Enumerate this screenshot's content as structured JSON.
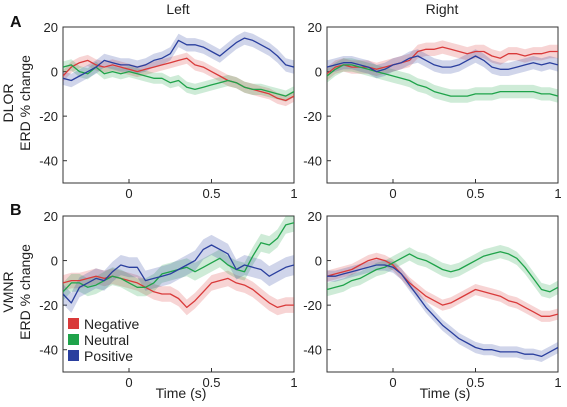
{
  "figure": {
    "column_titles": [
      "Left",
      "Right"
    ],
    "row_letters": [
      "A",
      "B"
    ],
    "row_ylabels": [
      [
        "DLOR",
        "ERD % change"
      ],
      [
        "VMNR",
        "ERD % change"
      ]
    ],
    "xlabel": "Time (s)"
  },
  "legend": {
    "placement": "bottom-left of panel B-Left",
    "entries": [
      {
        "label": "Negative",
        "color": "#d93a3a"
      },
      {
        "label": "Neutral",
        "color": "#1fa34a"
      },
      {
        "label": "Positive",
        "color": "#2a3f9e"
      }
    ]
  },
  "chart_data": [
    {
      "type": "line",
      "panel": "A-Left",
      "xlim": [
        -0.4,
        1.0
      ],
      "ylim": [
        -50,
        20
      ],
      "xticks": [
        0,
        0.5,
        1
      ],
      "xtick_labels": [
        "0",
        "0.5",
        "1"
      ],
      "yticks": [
        20,
        0,
        -20,
        -40
      ],
      "ytick_labels": [
        "20",
        "0",
        "-20",
        "-40"
      ],
      "x": [
        -0.4,
        -0.35,
        -0.3,
        -0.25,
        -0.2,
        -0.15,
        -0.1,
        -0.05,
        0.0,
        0.05,
        0.1,
        0.15,
        0.2,
        0.25,
        0.3,
        0.35,
        0.4,
        0.45,
        0.5,
        0.55,
        0.6,
        0.65,
        0.7,
        0.75,
        0.8,
        0.85,
        0.9,
        0.95,
        1.0
      ],
      "series": [
        {
          "name": "Negative",
          "color": "#d93a3a",
          "sem": 2.5,
          "values": [
            -2,
            2,
            4,
            5,
            3,
            2,
            3,
            2,
            1,
            0,
            1,
            2,
            3,
            4,
            5,
            6,
            3,
            2,
            0,
            -2,
            -4,
            -5,
            -7,
            -8,
            -9,
            -10,
            -12,
            -13,
            -11
          ]
        },
        {
          "name": "Neutral",
          "color": "#1fa34a",
          "sem": 2.5,
          "values": [
            2,
            3,
            0,
            -1,
            2,
            -1,
            0,
            -1,
            0,
            -1,
            -2,
            -3,
            -3,
            -5,
            -4,
            -7,
            -8,
            -7,
            -6,
            -5,
            -4,
            -5,
            -7,
            -8,
            -8,
            -9,
            -10,
            -11,
            -9
          ]
        },
        {
          "name": "Positive",
          "color": "#2a3f9e",
          "sem": 3.0,
          "values": [
            -3,
            -4,
            -2,
            0,
            2,
            5,
            4,
            3,
            3,
            2,
            3,
            5,
            6,
            8,
            14,
            12,
            12,
            11,
            9,
            7,
            10,
            13,
            15,
            14,
            12,
            10,
            7,
            3,
            2
          ]
        }
      ]
    },
    {
      "type": "line",
      "panel": "A-Right",
      "xlim": [
        -0.4,
        1.0
      ],
      "ylim": [
        -50,
        20
      ],
      "xticks": [
        0,
        0.5,
        1
      ],
      "xtick_labels": [
        "0",
        "0.5",
        "1"
      ],
      "yticks": [
        20,
        0,
        -20,
        -40
      ],
      "ytick_labels": [
        "20",
        "0",
        "-20",
        "-40"
      ],
      "x": [
        -0.4,
        -0.35,
        -0.3,
        -0.25,
        -0.2,
        -0.15,
        -0.1,
        -0.05,
        0.0,
        0.05,
        0.1,
        0.15,
        0.2,
        0.25,
        0.3,
        0.35,
        0.4,
        0.45,
        0.5,
        0.55,
        0.6,
        0.65,
        0.7,
        0.75,
        0.8,
        0.85,
        0.9,
        0.95,
        1.0
      ],
      "series": [
        {
          "name": "Negative",
          "color": "#d93a3a",
          "sem": 3.0,
          "values": [
            -1,
            2,
            3,
            2,
            2,
            2,
            1,
            2,
            3,
            4,
            5,
            9,
            10,
            10,
            11,
            10,
            9,
            8,
            9,
            9,
            7,
            6,
            8,
            8,
            7,
            8,
            8,
            9,
            9
          ]
        },
        {
          "name": "Neutral",
          "color": "#1fa34a",
          "sem": 3.0,
          "values": [
            -2,
            1,
            3,
            3,
            2,
            1,
            0,
            -1,
            -2,
            -3,
            -4,
            -6,
            -7,
            -9,
            -10,
            -11,
            -11,
            -11,
            -10,
            -10,
            -10,
            -9,
            -9,
            -9,
            -9,
            -9,
            -10,
            -10,
            -11
          ]
        },
        {
          "name": "Positive",
          "color": "#2a3f9e",
          "sem": 3.0,
          "values": [
            2,
            3,
            4,
            4,
            3,
            2,
            0,
            1,
            3,
            4,
            6,
            7,
            5,
            3,
            2,
            2,
            3,
            5,
            7,
            5,
            2,
            1,
            1,
            2,
            3,
            4,
            3,
            4,
            3
          ]
        }
      ]
    },
    {
      "type": "line",
      "panel": "B-Left",
      "xlim": [
        -0.4,
        1.0
      ],
      "ylim": [
        -50,
        20
      ],
      "xticks": [
        0,
        0.5,
        1
      ],
      "xtick_labels": [
        "0",
        "0.5",
        "1"
      ],
      "yticks": [
        20,
        0,
        -20,
        -40
      ],
      "ytick_labels": [
        "20",
        "0",
        "-20",
        "-40"
      ],
      "x": [
        -0.4,
        -0.35,
        -0.3,
        -0.25,
        -0.2,
        -0.15,
        -0.1,
        -0.05,
        0.0,
        0.05,
        0.1,
        0.15,
        0.2,
        0.25,
        0.3,
        0.35,
        0.4,
        0.45,
        0.5,
        0.55,
        0.6,
        0.65,
        0.7,
        0.75,
        0.8,
        0.85,
        0.9,
        0.95,
        1.0
      ],
      "series": [
        {
          "name": "Negative",
          "color": "#d93a3a",
          "sem": 3.5,
          "values": [
            -10,
            -9,
            -9,
            -8,
            -7,
            -8,
            -7,
            -8,
            -9,
            -10,
            -12,
            -14,
            -15,
            -15,
            -17,
            -21,
            -18,
            -14,
            -10,
            -9,
            -8,
            -10,
            -11,
            -13,
            -16,
            -19,
            -21,
            -20,
            -20
          ]
        },
        {
          "name": "Neutral",
          "color": "#1fa34a",
          "sem": 4.0,
          "values": [
            -14,
            -10,
            -10,
            -12,
            -11,
            -9,
            -7,
            -8,
            -10,
            -12,
            -12,
            -10,
            -6,
            -5,
            -4,
            -3,
            -5,
            -3,
            -1,
            1,
            -2,
            -4,
            -5,
            2,
            8,
            7,
            10,
            16,
            17
          ]
        },
        {
          "name": "Positive",
          "color": "#2a3f9e",
          "sem": 4.5,
          "values": [
            -15,
            -19,
            -12,
            -10,
            -8,
            -9,
            -5,
            -2,
            -3,
            -3,
            -9,
            -8,
            -7,
            -6,
            -4,
            -2,
            0,
            5,
            7,
            5,
            3,
            -4,
            -2,
            -3,
            -4,
            -7,
            -5,
            -3,
            -2
          ]
        }
      ]
    },
    {
      "type": "line",
      "panel": "B-Right",
      "xlim": [
        -0.4,
        1.0
      ],
      "ylim": [
        -50,
        20
      ],
      "xticks": [
        0,
        0.5,
        1
      ],
      "xtick_labels": [
        "0",
        "0.5",
        "1"
      ],
      "yticks": [
        20,
        0,
        -20,
        -40
      ],
      "ytick_labels": [
        "20",
        "0",
        "-20",
        "-40"
      ],
      "x": [
        -0.4,
        -0.35,
        -0.3,
        -0.25,
        -0.2,
        -0.15,
        -0.1,
        -0.05,
        0.0,
        0.05,
        0.1,
        0.15,
        0.2,
        0.25,
        0.3,
        0.35,
        0.4,
        0.45,
        0.5,
        0.55,
        0.6,
        0.65,
        0.7,
        0.75,
        0.8,
        0.85,
        0.9,
        0.95,
        1.0
      ],
      "series": [
        {
          "name": "Negative",
          "color": "#d93a3a",
          "sem": 2.5,
          "values": [
            -7,
            -6,
            -5,
            -4,
            -2,
            0,
            1,
            0,
            -2,
            -6,
            -10,
            -13,
            -16,
            -18,
            -20,
            -19,
            -17,
            -15,
            -13,
            -14,
            -15,
            -16,
            -18,
            -19,
            -21,
            -23,
            -25,
            -25,
            -24
          ]
        },
        {
          "name": "Neutral",
          "color": "#1fa34a",
          "sem": 3.0,
          "values": [
            -13,
            -12,
            -11,
            -9,
            -8,
            -6,
            -4,
            -3,
            -1,
            1,
            3,
            1,
            0,
            -2,
            -4,
            -5,
            -4,
            -2,
            0,
            2,
            3,
            4,
            3,
            1,
            -3,
            -8,
            -13,
            -14,
            -12
          ]
        },
        {
          "name": "Positive",
          "color": "#2a3f9e",
          "sem": 2.5,
          "values": [
            -7,
            -7,
            -6,
            -5,
            -4,
            -3,
            -2,
            -2,
            -3,
            -6,
            -11,
            -16,
            -21,
            -25,
            -29,
            -32,
            -35,
            -37,
            -39,
            -40,
            -40,
            -41,
            -41,
            -41,
            -42,
            -42,
            -43,
            -41,
            -39
          ]
        }
      ]
    }
  ]
}
